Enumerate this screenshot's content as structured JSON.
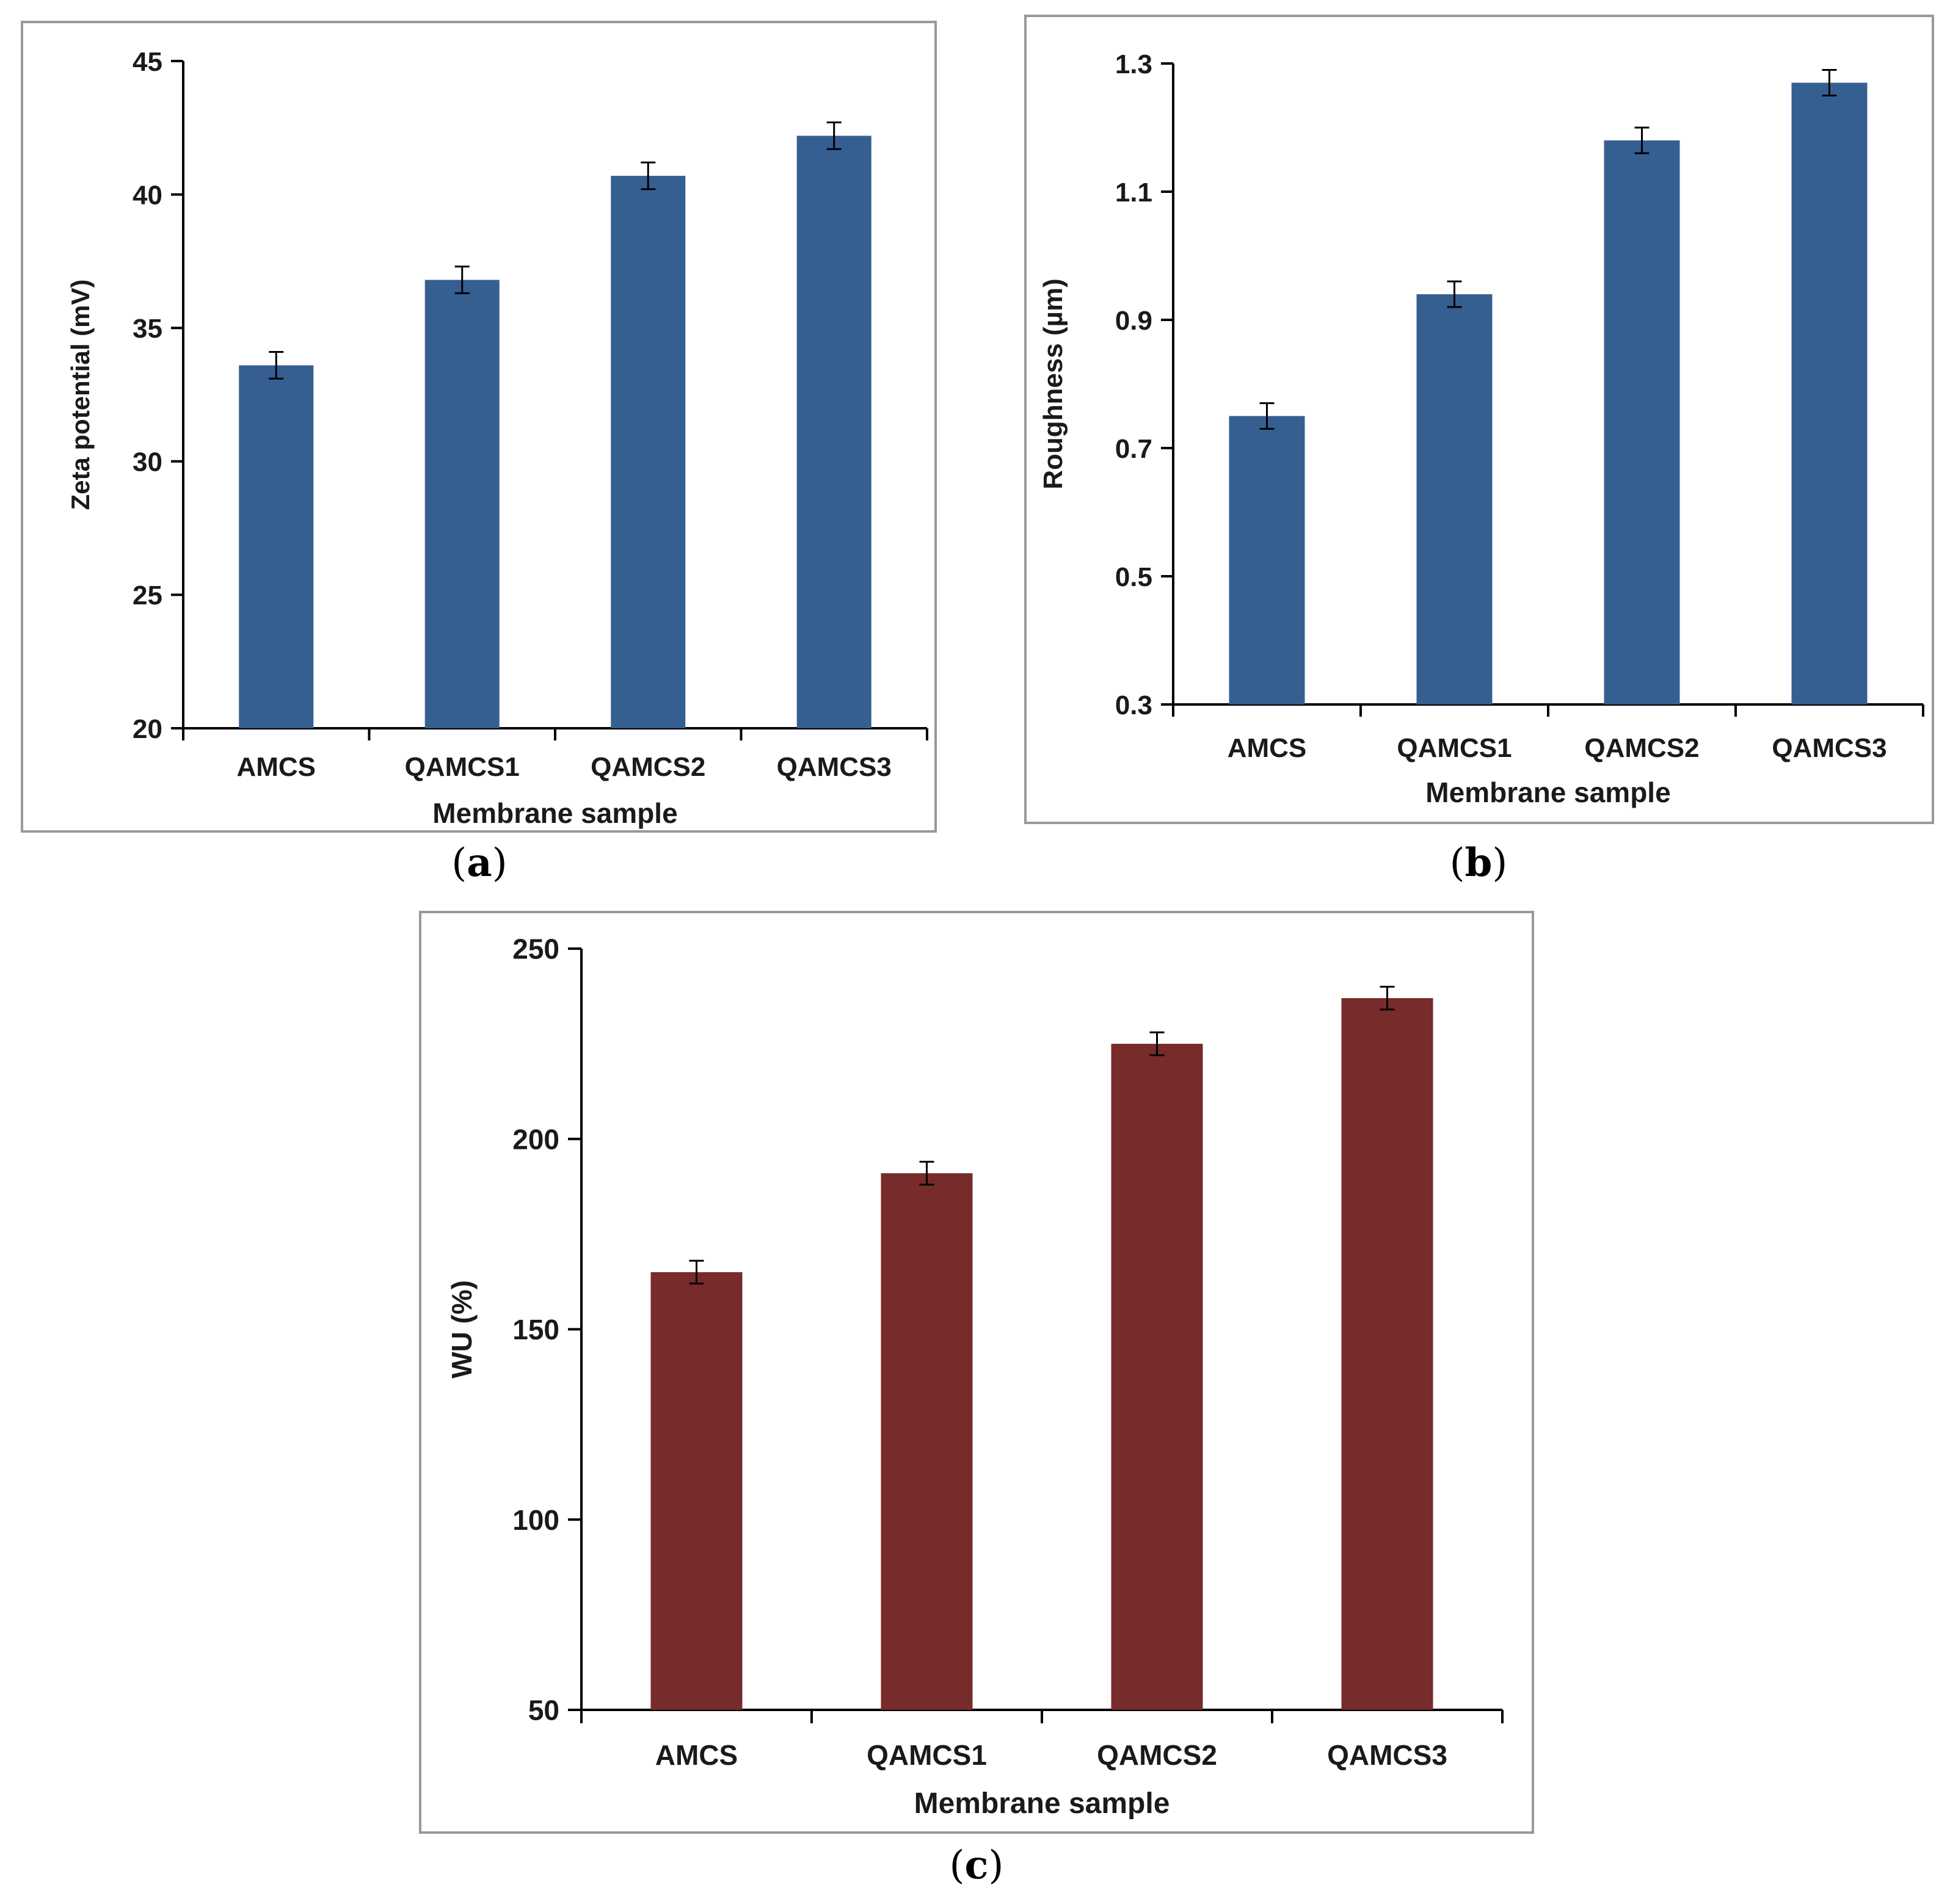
{
  "chart_data": [
    {
      "id": "a",
      "type": "bar",
      "categories": [
        "AMCS",
        "QAMCS1",
        "QAMCS2",
        "QAMCS3"
      ],
      "values": [
        33.6,
        36.8,
        40.7,
        42.2
      ],
      "errors": [
        0.5,
        0.5,
        0.5,
        0.5
      ],
      "xlabel": "Membrane sample",
      "ylabel": "Zeta potential (mV)",
      "ylim": [
        20,
        45
      ],
      "yticks": [
        "20",
        "25",
        "30",
        "35",
        "40",
        "45"
      ],
      "bar_color": "#365F91",
      "caption": "a"
    },
    {
      "id": "b",
      "type": "bar",
      "categories": [
        "AMCS",
        "QAMCS1",
        "QAMCS2",
        "QAMCS3"
      ],
      "values": [
        0.75,
        0.94,
        1.18,
        1.27
      ],
      "errors": [
        0.02,
        0.02,
        0.02,
        0.02
      ],
      "xlabel": "Membrane sample",
      "ylabel": "Roughness (µm)",
      "ylim": [
        0.3,
        1.3
      ],
      "yticks": [
        "0.3",
        "0.5",
        "0.7",
        "0.9",
        "1.1",
        "1.3"
      ],
      "bar_color": "#365F91",
      "caption": "b"
    },
    {
      "id": "c",
      "type": "bar",
      "categories": [
        "AMCS",
        "QAMCS1",
        "QAMCS2",
        "QAMCS3"
      ],
      "values": [
        165,
        191,
        225,
        237
      ],
      "errors": [
        3,
        3,
        3,
        3
      ],
      "xlabel": "Membrane sample",
      "ylabel": "WU (%)",
      "ylim": [
        50,
        250
      ],
      "yticks": [
        "50",
        "100",
        "150",
        "200",
        "250"
      ],
      "bar_color": "#772B2B",
      "caption": "c"
    }
  ]
}
